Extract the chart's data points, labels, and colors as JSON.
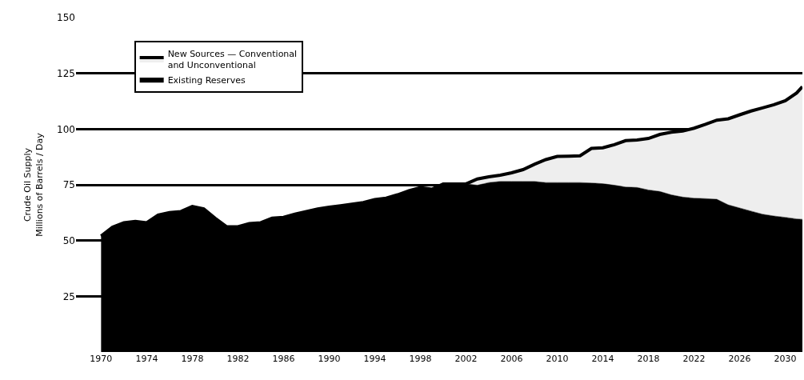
{
  "chart_data": {
    "type": "area",
    "stacked": true,
    "ylabel": "Crude Oil Supply\nMillions of Barrels / Day",
    "x": [
      1970,
      1971,
      1972,
      1973,
      1974,
      1975,
      1976,
      1977,
      1978,
      1979,
      1980,
      1981,
      1982,
      1983,
      1984,
      1985,
      1986,
      1987,
      1988,
      1989,
      1990,
      1991,
      1992,
      1993,
      1994,
      1995,
      1996,
      1997,
      1998,
      1999,
      2000,
      2001,
      2002,
      2003,
      2004,
      2005,
      2006,
      2007,
      2008,
      2009,
      2010,
      2011,
      2012,
      2013,
      2014,
      2015,
      2016,
      2017,
      2018,
      2019,
      2020,
      2021,
      2022,
      2023,
      2024,
      2025,
      2026,
      2027,
      2028,
      2029,
      2030,
      2031,
      2031.5
    ],
    "series": [
      {
        "name": "Existing Reserves",
        "color": "#000000",
        "values": [
          52,
          56,
          58,
          58.6,
          58,
          61.4,
          62.5,
          63,
          65.3,
          64.2,
          60,
          56.2,
          56.2,
          57.6,
          58,
          60,
          60.4,
          61.8,
          63,
          64.2,
          65,
          65.6,
          66.3,
          67,
          68.4,
          69,
          70.5,
          72.3,
          73.7,
          73,
          75.4,
          75.4,
          75.4,
          74.8,
          76,
          76.5,
          76.5,
          76.5,
          76.5,
          76,
          76,
          76,
          76,
          75.8,
          75.5,
          74.8,
          74,
          73.8,
          72.7,
          72,
          70.5,
          69.5,
          69,
          68.8,
          68.5,
          66,
          64.6,
          63.2,
          61.8,
          61,
          60.4,
          59.7,
          59.5
        ]
      },
      {
        "name": "New Sources — Conventional\nand Unconventional",
        "color": "#eeeeee",
        "values": [
          0,
          0,
          0,
          0,
          0,
          0,
          0,
          0,
          0,
          0,
          0,
          0,
          0,
          0,
          0,
          0,
          0,
          0,
          0,
          0,
          0,
          0,
          0,
          0,
          0,
          0,
          0,
          0,
          0,
          0,
          0,
          0,
          0,
          2.8,
          2.6,
          2.8,
          3.9,
          5.3,
          7.7,
          10.3,
          11.7,
          11.8,
          12,
          15.5,
          16.1,
          18.2,
          20.8,
          21.3,
          23.1,
          25.6,
          28.1,
          29.6,
          31.4,
          33.3,
          35.5,
          38.6,
          41.8,
          44.9,
          47.7,
          49.9,
          52.3,
          56.5,
          59.5
        ]
      }
    ],
    "xlim": [
      1967.8,
      2031.5
    ],
    "xticks": [
      1970,
      1974,
      1978,
      1982,
      1986,
      1990,
      1994,
      1998,
      2002,
      2006,
      2010,
      2014,
      2018,
      2022,
      2026,
      2030
    ],
    "ylim": [
      0,
      150
    ],
    "yticks": [
      25,
      50,
      75,
      100,
      125,
      150
    ],
    "grid": "y",
    "legend": "top left"
  }
}
